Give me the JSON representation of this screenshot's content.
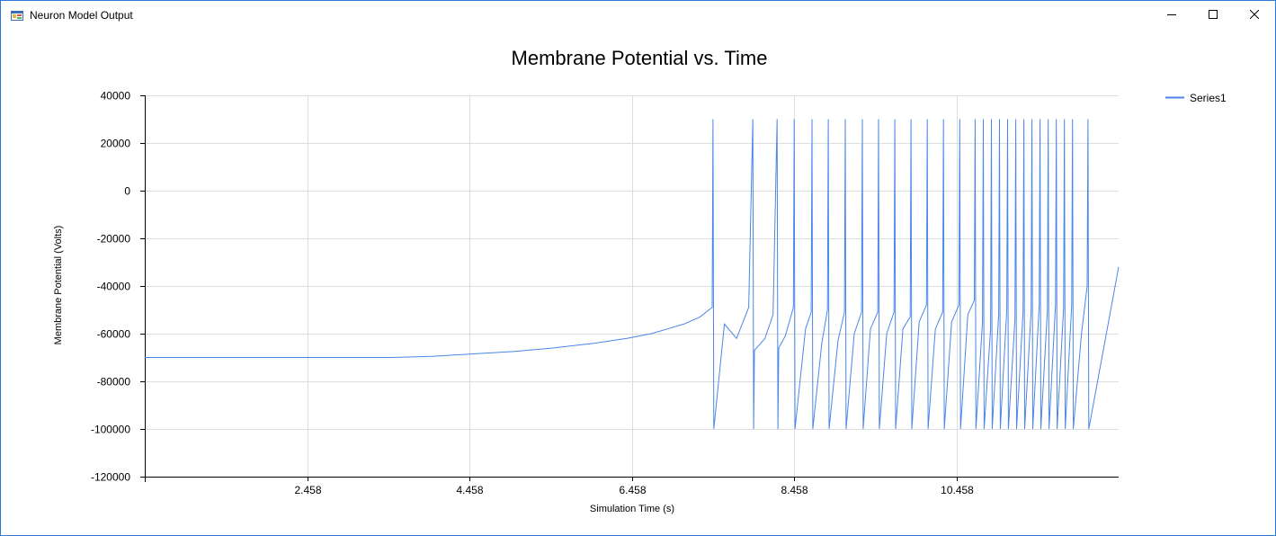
{
  "window": {
    "title": "Neuron Model Output",
    "controls": {
      "minimize": "minimize-icon",
      "maximize": "maximize-icon",
      "close": "close-icon"
    }
  },
  "colors": {
    "series": "#4a86e8",
    "grid": "#dddddd",
    "axis": "#000000"
  },
  "chart_data": {
    "type": "line",
    "title": "Membrane Potential vs. Time",
    "xlabel": "Simulation Time (s)",
    "ylabel": "Membrane Potential (Volts)",
    "xlim": [
      0.458,
      12.458
    ],
    "ylim": [
      -120000,
      40000
    ],
    "y_ticks": [
      40000,
      20000,
      0,
      -20000,
      -40000,
      -60000,
      -80000,
      -100000,
      -120000
    ],
    "x_ticks": [
      2.458,
      4.458,
      6.458,
      8.458,
      10.458
    ],
    "grid": true,
    "legend": {
      "position": "top-right",
      "entries": [
        "Series1"
      ]
    },
    "series": [
      {
        "name": "Series1",
        "x": [
          0.458,
          1.5,
          2.5,
          3.5,
          4.0,
          4.5,
          5.0,
          5.5,
          6.0,
          6.4,
          6.7,
          6.9,
          7.1,
          7.3,
          7.41,
          7.45,
          7.46,
          7.47,
          7.6,
          7.75,
          7.9,
          7.95,
          7.96,
          7.97,
          8.1,
          8.2,
          8.25,
          8.26,
          8.27,
          8.35,
          8.45,
          8.46,
          8.47,
          8.6,
          8.67,
          8.68,
          8.69,
          8.8,
          8.87,
          8.88,
          8.89,
          9.0,
          9.08,
          9.09,
          9.1,
          9.2,
          9.29,
          9.3,
          9.31,
          9.4,
          9.49,
          9.5,
          9.51,
          9.6,
          9.69,
          9.7,
          9.71,
          9.8,
          9.89,
          9.9,
          9.91,
          10.0,
          10.09,
          10.1,
          10.11,
          10.2,
          10.29,
          10.3,
          10.31,
          10.4,
          10.49,
          10.5,
          10.51,
          10.6,
          10.68,
          10.69,
          10.7,
          10.78,
          10.79,
          10.8,
          10.88,
          10.89,
          10.9,
          10.98,
          10.99,
          11.0,
          11.08,
          11.09,
          11.1,
          11.18,
          11.19,
          11.2,
          11.28,
          11.29,
          11.3,
          11.38,
          11.39,
          11.4,
          11.48,
          11.49,
          11.5,
          11.58,
          11.59,
          11.6,
          11.68,
          11.69,
          11.7,
          11.78,
          11.79,
          11.8,
          11.88,
          11.89,
          11.9,
          12.0,
          12.07,
          12.08,
          12.09,
          12.458
        ],
        "values": [
          -70000,
          -70000,
          -70000,
          -70000,
          -69500,
          -68500,
          -67500,
          -66000,
          -64000,
          -62000,
          -60000,
          -58000,
          -56000,
          -53000,
          -50000,
          -49000,
          30000,
          -100000,
          -56000,
          -62000,
          -49000,
          30000,
          -100000,
          -67000,
          -62000,
          -52000,
          30000,
          -100000,
          -66000,
          -61000,
          -49000,
          30000,
          -100000,
          -58000,
          -51000,
          30000,
          -100000,
          -64000,
          -50000,
          30000,
          -100000,
          -63000,
          -51000,
          30000,
          -100000,
          -60000,
          -51000,
          30000,
          -100000,
          -58000,
          -51000,
          30000,
          -100000,
          -60000,
          -51000,
          30000,
          -100000,
          -58000,
          -53000,
          30000,
          -100000,
          -55000,
          -48000,
          30000,
          -100000,
          -58000,
          -51000,
          30000,
          -100000,
          -55000,
          -48000,
          30000,
          -100000,
          -52000,
          -46000,
          30000,
          -100000,
          -55000,
          30000,
          -100000,
          -58000,
          30000,
          -100000,
          -52000,
          30000,
          -100000,
          -50000,
          30000,
          -100000,
          -54000,
          30000,
          -100000,
          -51000,
          30000,
          -100000,
          -50000,
          30000,
          -100000,
          -48000,
          30000,
          -100000,
          -50000,
          30000,
          -100000,
          -48000,
          30000,
          -100000,
          -49000,
          30000,
          -100000,
          -48000,
          30000,
          -100000,
          -60000,
          -40000,
          30000,
          -100000,
          -32000
        ]
      }
    ]
  }
}
